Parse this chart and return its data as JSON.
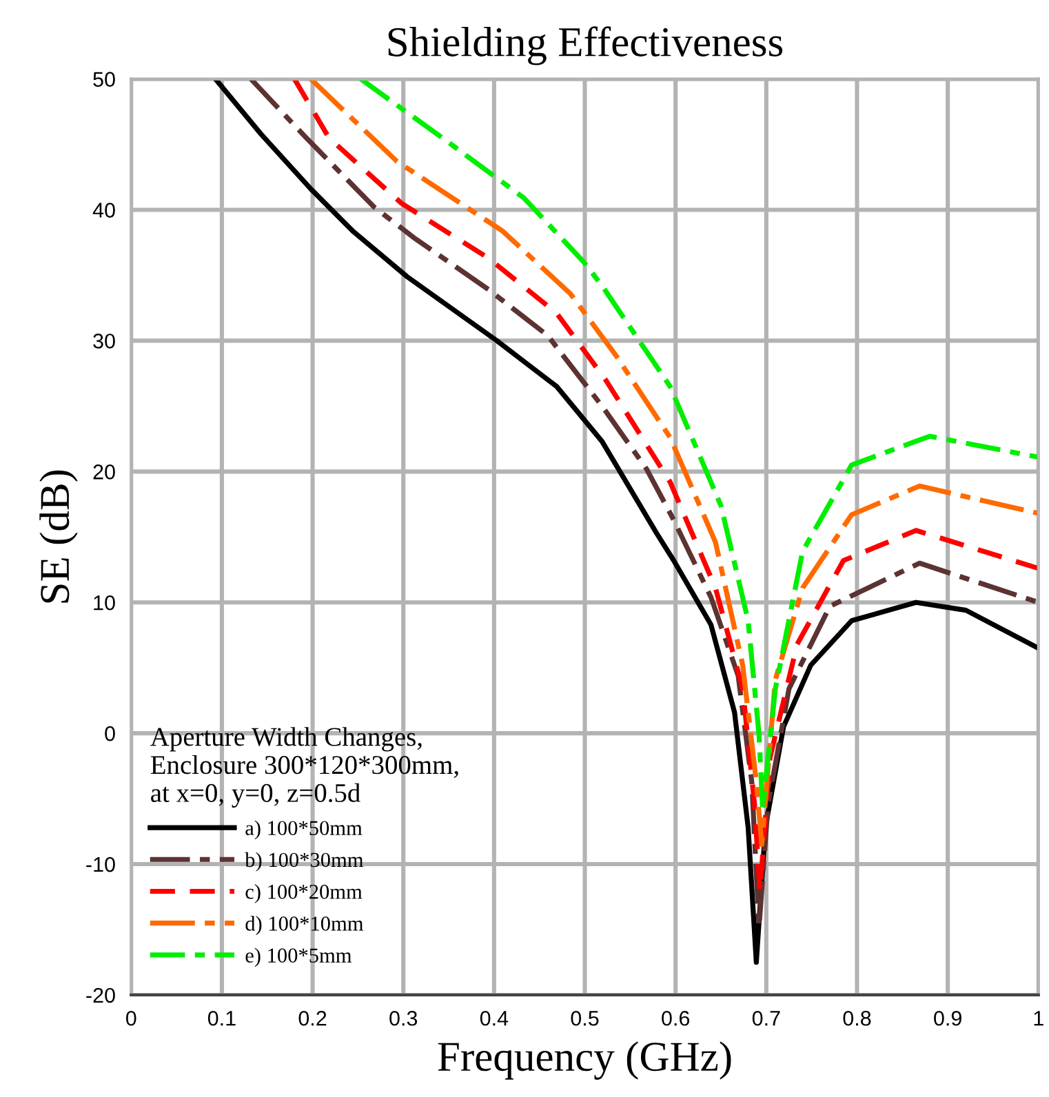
{
  "chart_data": {
    "type": "line",
    "title": "Shielding Effectiveness",
    "xlabel": "Frequency (GHz)",
    "ylabel": "SE (dB)",
    "legend_title": "Aperture Width Changes,\nEnclosure 300*120*300mm,\nat x=0, y=0, z=0.5d",
    "xlim": [
      0,
      1
    ],
    "xticks": [
      0,
      0.1,
      0.2,
      0.3,
      0.4,
      0.5,
      0.6,
      0.7,
      0.8,
      0.9,
      1
    ],
    "ylim": [
      -20,
      50
    ],
    "yticks": [
      -20,
      -10,
      0,
      10,
      20,
      30,
      40,
      50
    ],
    "grid": true,
    "legend": "bottom left",
    "marker": "none",
    "series": [
      {
        "name": "a) 100*50mm",
        "color": "#000000",
        "line_style": "solid",
        "x": [
          0.093,
          0.143,
          0.198,
          0.244,
          0.304,
          0.403,
          0.469,
          0.519,
          0.579,
          0.598,
          0.639,
          0.665,
          0.68,
          0.689,
          0.699,
          0.719,
          0.749,
          0.794,
          0.865,
          0.92,
          1.0
        ],
        "values": [
          50,
          45.8,
          41.6,
          38.4,
          34.9,
          30.0,
          26.5,
          22.3,
          15.3,
          13.2,
          8.3,
          1.6,
          -7.2,
          -17.5,
          -7.2,
          0.5,
          5.2,
          8.6,
          10.0,
          9.4,
          6.5
        ]
      },
      {
        "name": "b) 100*30mm",
        "color": "#5c3232",
        "line_style": "dashed",
        "x": [
          0.132,
          0.193,
          0.268,
          0.313,
          0.394,
          0.459,
          0.519,
          0.568,
          0.598,
          0.639,
          0.669,
          0.684,
          0.692,
          0.702,
          0.725,
          0.77,
          0.869,
          1.0
        ],
        "values": [
          50,
          45.5,
          40.2,
          37.8,
          33.9,
          30.4,
          25.0,
          20.2,
          16.3,
          10.4,
          4.4,
          -3.7,
          -14.8,
          -5.4,
          3.4,
          9.7,
          13.0,
          10.0
        ]
      },
      {
        "name": "c) 100*20mm",
        "color": "#ff0000",
        "line_style": "dashed",
        "x": [
          0.18,
          0.218,
          0.298,
          0.394,
          0.469,
          0.523,
          0.594,
          0.644,
          0.674,
          0.687,
          0.693,
          0.704,
          0.734,
          0.785,
          0.865,
          1.0
        ],
        "values": [
          50,
          45.5,
          40.5,
          36.3,
          32.1,
          27.0,
          19.2,
          11.1,
          3.4,
          -5.4,
          -12.1,
          -1.9,
          6.8,
          13.2,
          15.5,
          12.6
        ]
      },
      {
        "name": "d) 100*10mm",
        "color": "#ff6a00",
        "line_style": "dashed",
        "x": [
          0.198,
          0.293,
          0.409,
          0.484,
          0.534,
          0.594,
          0.644,
          0.674,
          0.689,
          0.695,
          0.71,
          0.74,
          0.794,
          0.869,
          1.0
        ],
        "values": [
          50,
          43.7,
          38.4,
          33.6,
          28.9,
          22.6,
          14.6,
          5.2,
          -3.7,
          -8.5,
          4.1,
          11.1,
          16.7,
          18.9,
          16.8
        ]
      },
      {
        "name": "e) 100*5mm",
        "color": "#00ee00",
        "line_style": "dashed",
        "x": [
          0.253,
          0.343,
          0.433,
          0.499,
          0.519,
          0.594,
          0.65,
          0.68,
          0.692,
          0.696,
          0.71,
          0.74,
          0.794,
          0.88,
          1.0
        ],
        "values": [
          50,
          45.5,
          40.9,
          36.0,
          34.2,
          26.5,
          17.4,
          8.6,
          -0.1,
          -5.8,
          3.4,
          13.9,
          20.5,
          22.7,
          21.1
        ]
      }
    ]
  }
}
